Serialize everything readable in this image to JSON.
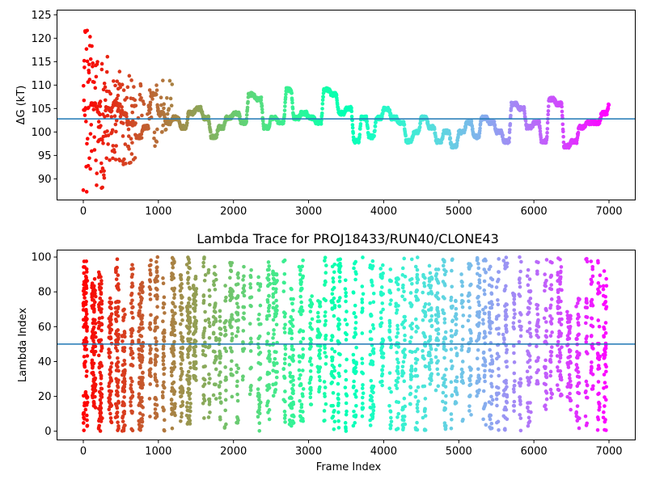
{
  "chart_data": [
    {
      "type": "scatter",
      "title": "",
      "xlabel": "",
      "ylabel": "ΔG (kT)",
      "xlim": [
        -350,
        7350
      ],
      "ylim": [
        85.5,
        126
      ],
      "xticks": [
        0,
        1000,
        2000,
        3000,
        4000,
        5000,
        6000,
        7000
      ],
      "xtick_labels": [
        "0",
        "1000",
        "2000",
        "3000",
        "4000",
        "5000",
        "6000",
        "7000"
      ],
      "yticks": [
        90,
        95,
        100,
        105,
        110,
        115,
        120,
        125
      ],
      "ytick_labels": [
        "90",
        "95",
        "100",
        "105",
        "110",
        "115",
        "120",
        "125"
      ],
      "reference_line": {
        "y": 102.8,
        "color": "#1f77b4"
      },
      "colormap": "rainbow (red at frame 0 → violet at frame 7000)",
      "grid": false,
      "trace_profile_x": [
        0,
        100,
        200,
        300,
        400,
        500,
        600,
        700,
        800,
        900,
        1000,
        1100,
        1200,
        1300,
        1400,
        1500,
        1600,
        1700,
        1800,
        1900,
        2000,
        2100,
        2200,
        2300,
        2400,
        2500,
        2600,
        2700,
        2800,
        2900,
        3000,
        3100,
        3200,
        3300,
        3400,
        3500,
        3600,
        3700,
        3800,
        3900,
        4000,
        4100,
        4200,
        4300,
        4400,
        4500,
        4600,
        4700,
        4800,
        4900,
        5000,
        5100,
        5200,
        5300,
        5400,
        5500,
        5600,
        5700,
        5800,
        5900,
        6000,
        6100,
        6200,
        6300,
        6400,
        6500,
        6600,
        6700,
        6800,
        6900,
        7000
      ],
      "trace_profile_y": [
        105,
        106,
        104,
        105,
        106,
        104,
        102,
        99,
        101,
        108,
        104,
        102,
        103,
        101,
        104,
        105,
        103,
        99,
        101,
        103,
        104,
        102,
        108,
        107,
        101,
        103,
        102,
        109,
        103,
        104,
        103,
        102,
        109,
        108,
        104,
        105,
        98,
        103,
        99,
        103,
        105,
        103,
        102,
        98,
        100,
        103,
        101,
        98,
        100,
        97,
        100,
        102,
        99,
        103,
        102,
        100,
        98,
        106,
        105,
        101,
        102,
        98,
        107,
        106,
        97,
        98,
        101,
        102,
        102,
        104,
        106
      ],
      "early_spread": [
        {
          "frame_max": 120,
          "min": 87,
          "max": 123
        },
        {
          "frame_max": 350,
          "min": 88,
          "max": 117
        },
        {
          "frame_max": 700,
          "min": 93,
          "max": 113
        },
        {
          "frame_max": 1200,
          "min": 96,
          "max": 111
        }
      ]
    },
    {
      "type": "scatter",
      "title": "Lambda Trace for PROJ18433/RUN40/CLONE43",
      "xlabel": "Frame Index",
      "ylabel": "Lambda Index",
      "xlim": [
        -350,
        7350
      ],
      "ylim": [
        -5,
        104
      ],
      "xticks": [
        0,
        1000,
        2000,
        3000,
        4000,
        5000,
        6000,
        7000
      ],
      "xtick_labels": [
        "0",
        "1000",
        "2000",
        "3000",
        "4000",
        "5000",
        "6000",
        "7000"
      ],
      "yticks": [
        0,
        20,
        40,
        60,
        80,
        100
      ],
      "ytick_labels": [
        "0",
        "20",
        "40",
        "60",
        "80",
        "100"
      ],
      "reference_line": {
        "y": 50,
        "color": "#1f77b4"
      },
      "colormap": "rainbow (red at frame 0 → violet at frame 7000)",
      "grid": false,
      "description_points": "dense vertical bands of points spanning lambda 0–100 across frames 0–7000"
    }
  ]
}
